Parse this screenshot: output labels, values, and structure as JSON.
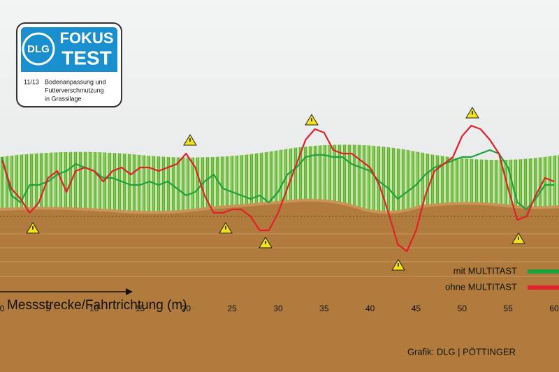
{
  "logo": {
    "brand": "DLG",
    "line1": "FOKUS",
    "line2": "TEST",
    "issue": "11/13",
    "subject": [
      "Bodenanpassung und",
      "Futterverschmutzung",
      "in Grassilage"
    ]
  },
  "chart_data": {
    "type": "line",
    "x_label": "Messstrecke/Fahrtrichtung (m)",
    "x": [
      0,
      1,
      2,
      3,
      4,
      5,
      6,
      7,
      8,
      9,
      10,
      11,
      12,
      13,
      14,
      15,
      16,
      17,
      18,
      19,
      20,
      21,
      22,
      23,
      24,
      25,
      26,
      27,
      28,
      29,
      30,
      31,
      32,
      33,
      34,
      35,
      36,
      37,
      38,
      39,
      40,
      41,
      42,
      43,
      44,
      45,
      46,
      47,
      48,
      49,
      50,
      51,
      52,
      53,
      54,
      55,
      56,
      57,
      58,
      59,
      60
    ],
    "xlim": [
      0,
      60
    ],
    "xticks": [
      0,
      5,
      10,
      15,
      20,
      25,
      30,
      35,
      40,
      45,
      50,
      55,
      60
    ],
    "ylim": [
      -8,
      14
    ],
    "series": [
      {
        "name": "mit MULTITAST",
        "color": "#1fa03a",
        "values": [
          8.5,
          3,
          2,
          4.5,
          4.5,
          5,
          6,
          6.5,
          7.5,
          7,
          6.5,
          5.5,
          5.5,
          5,
          4.5,
          4.5,
          5,
          4.5,
          5,
          4,
          3,
          3.5,
          5,
          6,
          4,
          3.5,
          3,
          2.5,
          3,
          2,
          3.5,
          6,
          7,
          8.5,
          8.8,
          8.8,
          8.5,
          8.5,
          7.5,
          7,
          6.5,
          5,
          4,
          2.5,
          3.5,
          4.5,
          6,
          7,
          7.5,
          8,
          8.5,
          8.5,
          9,
          9.5,
          9,
          7,
          2,
          1,
          2.5,
          4.5,
          4.5
        ]
      },
      {
        "name": "ohne MULTITAST",
        "color": "#e0202a",
        "values": [
          8,
          4,
          2.5,
          0.5,
          2,
          5.5,
          6.5,
          3.5,
          6.5,
          7,
          6.5,
          5,
          6.5,
          7,
          6,
          7,
          7,
          6.5,
          7,
          7.5,
          9,
          7,
          3,
          0.5,
          0.5,
          1,
          1,
          0,
          -2,
          -2,
          0.5,
          4,
          7.5,
          11,
          12.5,
          12,
          9.5,
          9,
          9,
          8,
          7,
          4.5,
          0.5,
          -4,
          -5,
          -2,
          3,
          6.5,
          7.5,
          8.5,
          11.5,
          13,
          12.5,
          11,
          9,
          4,
          -0.5,
          0,
          3,
          5.5,
          5
        ]
      }
    ],
    "credit": "Grafik: DLG | PÖTTINGER"
  }
}
